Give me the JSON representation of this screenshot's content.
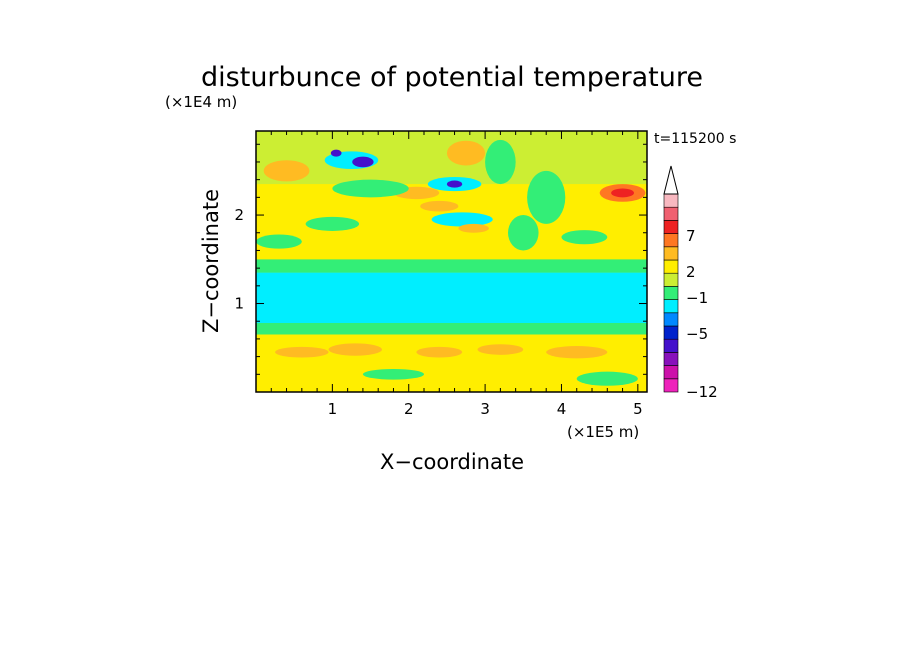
{
  "chart_data": {
    "type": "heatmap",
    "title": "disturbunce of potential temperature",
    "xlabel": "X−coordinate",
    "ylabel": "Z−coordinate",
    "x_unit": "(×1E5 m)",
    "y_unit": "(×1E4 m)",
    "time_label": "t=115200 s",
    "xlim": [
      0,
      5.12
    ],
    "ylim": [
      0,
      2.95
    ],
    "x_ticks": [
      1,
      2,
      3,
      4,
      5
    ],
    "y_ticks": [
      1,
      2
    ],
    "colorbar": {
      "ticks": [
        {
          "value": 7,
          "label": "7"
        },
        {
          "value": 2,
          "label": "2"
        },
        {
          "value": -1,
          "label": "−1"
        },
        {
          "value": -5,
          "label": "−5"
        },
        {
          "value": -12,
          "label": "−12"
        }
      ],
      "colors": [
        "#ee22bb",
        "#cc11aa",
        "#8811bb",
        "#4411cc",
        "#0022cc",
        "#0088ff",
        "#00eeff",
        "#33ee77",
        "#ccee33",
        "#ffee00",
        "#ffbb22",
        "#ff7722",
        "#ee2222",
        "#f06070",
        "#f8b8c0"
      ],
      "extend_max": true
    },
    "bands": [
      {
        "z": [
          0.0,
          0.25
        ],
        "level": 9
      },
      {
        "z": [
          0.25,
          0.65
        ],
        "level": 9
      },
      {
        "z": [
          0.65,
          0.78
        ],
        "level": 7
      },
      {
        "z": [
          0.78,
          1.35
        ],
        "level": 6
      },
      {
        "z": [
          1.35,
          1.5
        ],
        "level": 7
      },
      {
        "z": [
          1.5,
          2.35
        ],
        "level": 9
      },
      {
        "z": [
          2.35,
          2.95
        ],
        "level": 8
      }
    ],
    "features": [
      {
        "x": 1.25,
        "z": 2.62,
        "rx": 0.35,
        "rz": 0.1,
        "level": 6
      },
      {
        "x": 1.4,
        "z": 2.6,
        "rx": 0.14,
        "rz": 0.06,
        "level": 3
      },
      {
        "x": 1.05,
        "z": 2.7,
        "rx": 0.07,
        "rz": 0.04,
        "level": 3
      },
      {
        "x": 2.6,
        "z": 2.35,
        "rx": 0.35,
        "rz": 0.08,
        "level": 6
      },
      {
        "x": 2.6,
        "z": 2.35,
        "rx": 0.1,
        "rz": 0.04,
        "level": 3
      },
      {
        "x": 2.7,
        "z": 1.95,
        "rx": 0.4,
        "rz": 0.08,
        "level": 6
      },
      {
        "x": 2.85,
        "z": 1.85,
        "rx": 0.2,
        "rz": 0.05,
        "level": 10
      },
      {
        "x": 2.75,
        "z": 2.7,
        "rx": 0.25,
        "rz": 0.14,
        "level": 10
      },
      {
        "x": 2.1,
        "z": 2.25,
        "rx": 0.3,
        "rz": 0.07,
        "level": 10
      },
      {
        "x": 2.4,
        "z": 2.1,
        "rx": 0.25,
        "rz": 0.06,
        "level": 10
      },
      {
        "x": 4.8,
        "z": 2.25,
        "rx": 0.3,
        "rz": 0.1,
        "level": 11
      },
      {
        "x": 4.8,
        "z": 2.25,
        "rx": 0.15,
        "rz": 0.05,
        "level": 12
      },
      {
        "x": 0.4,
        "z": 2.5,
        "rx": 0.3,
        "rz": 0.12,
        "level": 10
      },
      {
        "x": 1.5,
        "z": 2.3,
        "rx": 0.5,
        "rz": 0.1,
        "level": 7
      },
      {
        "x": 3.2,
        "z": 2.6,
        "rx": 0.2,
        "rz": 0.25,
        "level": 7
      },
      {
        "x": 3.8,
        "z": 2.2,
        "rx": 0.25,
        "rz": 0.3,
        "level": 7
      },
      {
        "x": 0.6,
        "z": 0.45,
        "rx": 0.35,
        "rz": 0.06,
        "level": 10
      },
      {
        "x": 1.3,
        "z": 0.48,
        "rx": 0.35,
        "rz": 0.07,
        "level": 10
      },
      {
        "x": 2.4,
        "z": 0.45,
        "rx": 0.3,
        "rz": 0.06,
        "level": 10
      },
      {
        "x": 3.2,
        "z": 0.48,
        "rx": 0.3,
        "rz": 0.06,
        "level": 10
      },
      {
        "x": 4.2,
        "z": 0.45,
        "rx": 0.4,
        "rz": 0.07,
        "level": 10
      },
      {
        "x": 1.8,
        "z": 0.2,
        "rx": 0.4,
        "rz": 0.06,
        "level": 7
      },
      {
        "x": 4.6,
        "z": 0.15,
        "rx": 0.4,
        "rz": 0.08,
        "level": 7
      },
      {
        "x": 0.3,
        "z": 1.7,
        "rx": 0.3,
        "rz": 0.08,
        "level": 7
      },
      {
        "x": 1.0,
        "z": 1.9,
        "rx": 0.35,
        "rz": 0.08,
        "level": 7
      },
      {
        "x": 3.5,
        "z": 1.8,
        "rx": 0.2,
        "rz": 0.2,
        "level": 7
      },
      {
        "x": 4.3,
        "z": 1.75,
        "rx": 0.3,
        "rz": 0.08,
        "level": 7
      }
    ]
  }
}
